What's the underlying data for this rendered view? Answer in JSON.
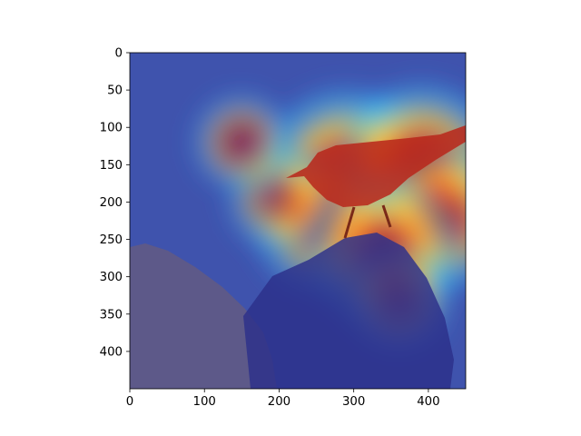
{
  "chart_data": {
    "type": "heatmap",
    "title": "",
    "xlabel": "",
    "ylabel": "",
    "xlim": [
      0,
      450
    ],
    "ylim": [
      450,
      0
    ],
    "x_ticks": [
      0,
      100,
      200,
      300,
      400
    ],
    "y_ticks": [
      0,
      50,
      100,
      150,
      200,
      250,
      300,
      350,
      400
    ],
    "colormap": "jet",
    "hotspots": [
      {
        "x": 340,
        "y": 190,
        "intensity": 1.0
      },
      {
        "x": 290,
        "y": 165,
        "intensity": 0.95
      },
      {
        "x": 390,
        "y": 150,
        "intensity": 0.85
      },
      {
        "x": 420,
        "y": 220,
        "intensity": 0.7
      },
      {
        "x": 260,
        "y": 230,
        "intensity": 0.65
      },
      {
        "x": 340,
        "y": 265,
        "intensity": 0.75
      },
      {
        "x": 200,
        "y": 195,
        "intensity": 0.35
      },
      {
        "x": 150,
        "y": 120,
        "intensity": 0.3
      },
      {
        "x": 360,
        "y": 330,
        "intensity": 0.35
      }
    ],
    "grid": false,
    "background_image": "bird-on-rock"
  },
  "colors": {
    "axis": "#000000",
    "cold": "#2a3fa0",
    "hot": "#d41b0b"
  }
}
